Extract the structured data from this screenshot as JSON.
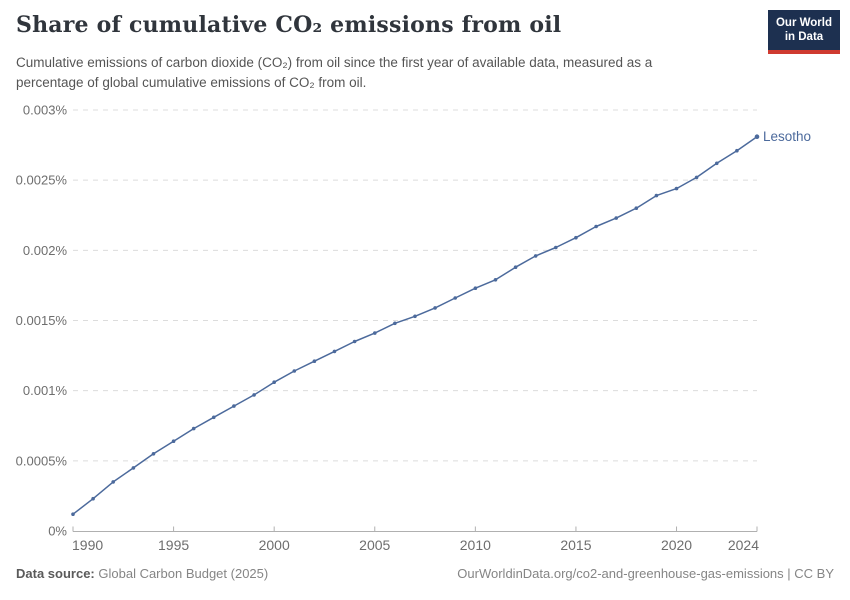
{
  "header": {
    "title": "Share of cumulative CO₂ emissions from oil",
    "subtitle_lines": [
      "Cumulative emissions of carbon dioxide (CO₂) from oil since the first year of available data, measured as a",
      "percentage of global cumulative emissions of CO₂ from oil."
    ]
  },
  "logo": {
    "line1": "Our World",
    "line2": "in Data",
    "bg_color": "#1d3050",
    "bar_color": "#cf3a30"
  },
  "footer": {
    "source_label": "Data source:",
    "source_value": "Global Carbon Budget (2025)",
    "attribution": "OurWorldinData.org/co2-and-greenhouse-gas-emissions | CC BY"
  },
  "chart_data": {
    "type": "line",
    "title": "Share of cumulative CO₂ emissions from oil",
    "unit": "%",
    "xlabel": "",
    "ylabel": "",
    "xlim": [
      1990,
      2024
    ],
    "ylim": [
      0,
      0.003
    ],
    "grid": "dashed-horizontal",
    "legend_position": "end-of-line-label",
    "end_label": "Lesotho",
    "colors": {
      "line": "#4c6a9c",
      "grid": "#dcdcdc",
      "axis": "#b0b0b0",
      "tick_label": "#6e6e6e"
    },
    "x_ticks": [
      {
        "year": 1990,
        "label": "1990",
        "align": "start"
      },
      {
        "year": 1995,
        "label": "1995",
        "align": "middle"
      },
      {
        "year": 2000,
        "label": "2000",
        "align": "middle"
      },
      {
        "year": 2005,
        "label": "2005",
        "align": "middle"
      },
      {
        "year": 2010,
        "label": "2010",
        "align": "middle"
      },
      {
        "year": 2015,
        "label": "2015",
        "align": "middle"
      },
      {
        "year": 2020,
        "label": "2020",
        "align": "middle"
      },
      {
        "year": 2024,
        "label": "2024",
        "align": "end"
      }
    ],
    "y_ticks": [
      {
        "value": 0,
        "label": "0%"
      },
      {
        "value": 0.0005,
        "label": "0.0005%"
      },
      {
        "value": 0.001,
        "label": "0.001%"
      },
      {
        "value": 0.0015,
        "label": "0.0015%"
      },
      {
        "value": 0.002,
        "label": "0.002%"
      },
      {
        "value": 0.0025,
        "label": "0.0025%"
      },
      {
        "value": 0.003,
        "label": "0.003%"
      }
    ],
    "series": [
      {
        "name": "Lesotho",
        "x": [
          1990,
          1991,
          1992,
          1993,
          1994,
          1995,
          1996,
          1997,
          1998,
          1999,
          2000,
          2001,
          2002,
          2003,
          2004,
          2005,
          2006,
          2007,
          2008,
          2009,
          2010,
          2011,
          2012,
          2013,
          2014,
          2015,
          2016,
          2017,
          2018,
          2019,
          2020,
          2021,
          2022,
          2023,
          2024
        ],
        "values": [
          0.00012,
          0.00023,
          0.00035,
          0.00045,
          0.00055,
          0.00064,
          0.00073,
          0.00081,
          0.00089,
          0.00097,
          0.00106,
          0.00114,
          0.00121,
          0.00128,
          0.00135,
          0.00141,
          0.00148,
          0.00153,
          0.00159,
          0.00166,
          0.00173,
          0.00179,
          0.00188,
          0.00196,
          0.00202,
          0.00209,
          0.00217,
          0.00223,
          0.0023,
          0.00239,
          0.00244,
          0.00252,
          0.00262,
          0.00271,
          0.00281
        ]
      }
    ]
  }
}
